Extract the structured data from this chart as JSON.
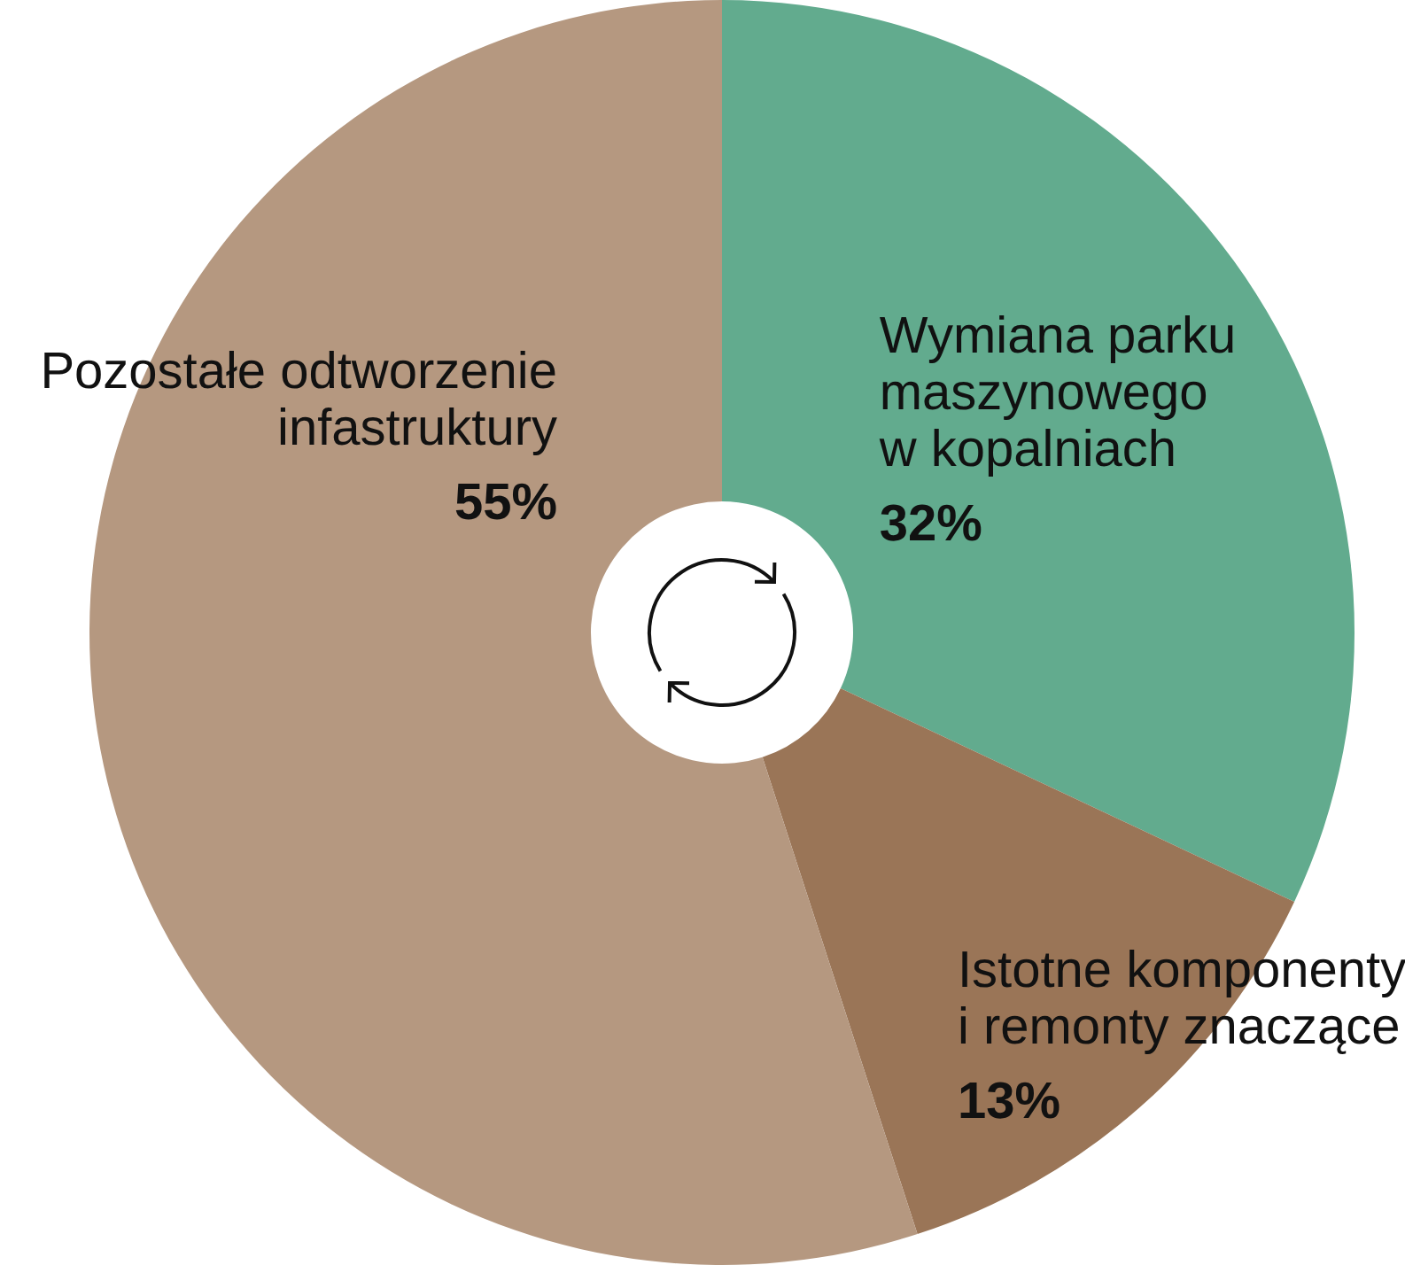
{
  "chart_data": {
    "type": "donut",
    "categories": [
      "Wymiana parku maszynowego w kopalniach",
      "Istotne komponenty i remonty znaczące",
      "Pozostałe odtworzenie infastruktury"
    ],
    "values": [
      32,
      13,
      55
    ],
    "colors": [
      "#62ab8e",
      "#9a7557",
      "#b59880"
    ],
    "value_labels": [
      "32%",
      "13%",
      "55%"
    ]
  }
}
